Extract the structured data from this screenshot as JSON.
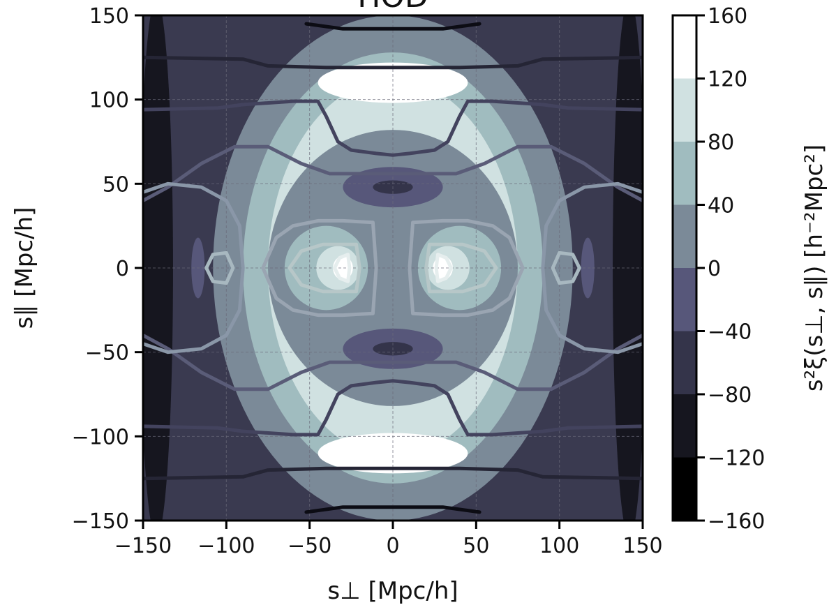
{
  "chart_data": {
    "type": "heatmap",
    "title": "HOD",
    "xlabel": "s⊥ [Mpc/h]",
    "ylabel": "s∥ [Mpc/h]",
    "colorbar_label": "s²ξ(s⊥, s∥) [h⁻²Mpc²]",
    "xlim": [
      -150,
      150
    ],
    "ylim": [
      -150,
      150
    ],
    "x_ticks": [
      -150,
      -100,
      -50,
      0,
      50,
      100,
      150
    ],
    "y_ticks": [
      -150,
      -100,
      -50,
      0,
      50,
      100,
      150
    ],
    "x_tick_labels": [
      "−150",
      "−100",
      "−50",
      "0",
      "50",
      "100",
      "150"
    ],
    "y_tick_labels": [
      "−150",
      "−100",
      "−50",
      "0",
      "50",
      "100",
      "150"
    ],
    "colorbar_levels": [
      -160,
      -120,
      -80,
      -40,
      0,
      40,
      80,
      120,
      160
    ],
    "colorbar_tick_labels": [
      "−160",
      "−120",
      "−80",
      "−40",
      "0",
      "40",
      "80",
      "120",
      "160"
    ],
    "colorbar_colors": [
      "#000000",
      "#16161f",
      "#34344a",
      "#57577a",
      "#7b8a98",
      "#a0bcbf",
      "#d0e1e1",
      "#ffffff"
    ],
    "grid": true,
    "filled_regions": [
      {
        "name": "edge-left",
        "level": -120,
        "cx": -142,
        "cy": 0,
        "rx": 10,
        "ry": 160
      },
      {
        "name": "edge-right",
        "level": -120,
        "cx": 142,
        "cy": 0,
        "rx": 10,
        "ry": 160
      },
      {
        "name": "outer-ring",
        "level": 0,
        "cx": 0,
        "cy": 0,
        "rx": 108,
        "ry": 150
      },
      {
        "name": "mid-ring",
        "level": 40,
        "cx": 0,
        "cy": 0,
        "rx": 90,
        "ry": 128
      },
      {
        "name": "bright-ring",
        "level": 80,
        "cx": 0,
        "cy": 0,
        "rx": 75,
        "ry": 112
      },
      {
        "name": "inner-dark",
        "level": 0,
        "cx": 0,
        "cy": 0,
        "rx": 75,
        "ry": 82
      },
      {
        "name": "peak-top",
        "level": 120,
        "cx": 0,
        "cy": 110,
        "rx": 45,
        "ry": 12
      },
      {
        "name": "peak-bottom",
        "level": 120,
        "cx": 0,
        "cy": -110,
        "rx": 45,
        "ry": 12
      },
      {
        "name": "lobe-top",
        "level": -40,
        "cx": 0,
        "cy": 48,
        "rx": 30,
        "ry": 12
      },
      {
        "name": "lobe-bottom",
        "level": -40,
        "cx": 0,
        "cy": -48,
        "rx": 30,
        "ry": 12
      },
      {
        "name": "lobe-left",
        "level": -40,
        "cx": -117,
        "cy": 0,
        "rx": 4,
        "ry": 18
      },
      {
        "name": "lobe-right",
        "level": -40,
        "cx": 117,
        "cy": 0,
        "rx": 4,
        "ry": 18
      },
      {
        "name": "blob-left",
        "level": 40,
        "cx": -40,
        "cy": 0,
        "rx": 25,
        "ry": 25
      },
      {
        "name": "blob-right",
        "level": 40,
        "cx": 40,
        "cy": 0,
        "rx": 25,
        "ry": 25
      },
      {
        "name": "core-left",
        "level": 80,
        "cx": -33,
        "cy": 0,
        "rx": 13,
        "ry": 13
      },
      {
        "name": "core-right",
        "level": 80,
        "cx": 33,
        "cy": 0,
        "rx": 13,
        "ry": 13
      },
      {
        "name": "spot-left",
        "level": 120,
        "cx": -30,
        "cy": 0,
        "rx": 6,
        "ry": 7
      },
      {
        "name": "spot-right",
        "level": 120,
        "cx": 30,
        "cy": 0,
        "rx": 6,
        "ry": 7
      },
      {
        "name": "eye-top",
        "level": -80,
        "cx": 0,
        "cy": 48,
        "rx": 12,
        "ry": 4
      },
      {
        "name": "eye-bottom",
        "level": -80,
        "cx": 0,
        "cy": -48,
        "rx": 12,
        "ry": 4
      }
    ],
    "line_contours": [
      {
        "name": "contour-top-outer",
        "color": "#0c0c14",
        "points": [
          [
            -52,
            145
          ],
          [
            -30,
            142
          ],
          [
            0,
            142
          ],
          [
            30,
            142
          ],
          [
            52,
            145
          ]
        ]
      },
      {
        "name": "contour-bottom-outer",
        "color": "#0c0c14",
        "points": [
          [
            -52,
            -145
          ],
          [
            -30,
            -142
          ],
          [
            0,
            -142
          ],
          [
            30,
            -142
          ],
          [
            52,
            -145
          ]
        ]
      },
      {
        "name": "contour-top-2",
        "color": "#252535",
        "points": [
          [
            -150,
            125
          ],
          [
            -90,
            124
          ],
          [
            -75,
            120
          ],
          [
            -40,
            119
          ],
          [
            0,
            119
          ],
          [
            40,
            119
          ],
          [
            75,
            120
          ],
          [
            90,
            124
          ],
          [
            150,
            125
          ]
        ]
      },
      {
        "name": "contour-bottom-2",
        "color": "#252535",
        "points": [
          [
            -150,
            -125
          ],
          [
            -90,
            -124
          ],
          [
            -75,
            -120
          ],
          [
            -40,
            -119
          ],
          [
            0,
            -119
          ],
          [
            40,
            -119
          ],
          [
            75,
            -120
          ],
          [
            90,
            -124
          ],
          [
            150,
            -125
          ]
        ]
      },
      {
        "name": "contour-top-3",
        "color": "#43435e",
        "points": [
          [
            -150,
            94
          ],
          [
            -105,
            95
          ],
          [
            -90,
            97
          ],
          [
            -60,
            99
          ],
          [
            -45,
            99
          ],
          [
            -40,
            90
          ],
          [
            -33,
            75
          ],
          [
            -25,
            70
          ],
          [
            -10,
            68
          ],
          [
            0,
            67
          ],
          [
            10,
            68
          ],
          [
            25,
            70
          ],
          [
            33,
            75
          ],
          [
            40,
            90
          ],
          [
            45,
            99
          ],
          [
            60,
            99
          ],
          [
            90,
            97
          ],
          [
            105,
            95
          ],
          [
            150,
            94
          ]
        ]
      },
      {
        "name": "contour-bottom-3",
        "color": "#43435e",
        "points": [
          [
            -150,
            -94
          ],
          [
            -105,
            -95
          ],
          [
            -90,
            -97
          ],
          [
            -60,
            -99
          ],
          [
            -45,
            -99
          ],
          [
            -40,
            -90
          ],
          [
            -33,
            -75
          ],
          [
            -25,
            -70
          ],
          [
            -10,
            -68
          ],
          [
            0,
            -67
          ],
          [
            10,
            -68
          ],
          [
            25,
            -70
          ],
          [
            33,
            -75
          ],
          [
            40,
            -90
          ],
          [
            45,
            -99
          ],
          [
            60,
            -99
          ],
          [
            90,
            -97
          ],
          [
            105,
            -95
          ],
          [
            150,
            -94
          ]
        ]
      },
      {
        "name": "contour-top-4",
        "color": "#5a5c78",
        "points": [
          [
            -150,
            40
          ],
          [
            -135,
            48
          ],
          [
            -115,
            62
          ],
          [
            -95,
            72
          ],
          [
            -75,
            72
          ],
          [
            -55,
            62
          ],
          [
            -38,
            56
          ],
          [
            -25,
            56
          ],
          [
            -10,
            56
          ],
          [
            0,
            56
          ],
          [
            10,
            56
          ],
          [
            25,
            56
          ],
          [
            38,
            56
          ],
          [
            55,
            62
          ],
          [
            75,
            72
          ],
          [
            95,
            72
          ],
          [
            115,
            62
          ],
          [
            135,
            48
          ],
          [
            150,
            40
          ]
        ]
      },
      {
        "name": "contour-bottom-4",
        "color": "#5a5c78",
        "points": [
          [
            -150,
            -40
          ],
          [
            -135,
            -48
          ],
          [
            -115,
            -62
          ],
          [
            -95,
            -72
          ],
          [
            -75,
            -72
          ],
          [
            -55,
            -62
          ],
          [
            -38,
            -56
          ],
          [
            -25,
            -56
          ],
          [
            -10,
            -56
          ],
          [
            0,
            -56
          ],
          [
            10,
            -56
          ],
          [
            25,
            -56
          ],
          [
            38,
            -56
          ],
          [
            55,
            -62
          ],
          [
            75,
            -72
          ],
          [
            95,
            -72
          ],
          [
            115,
            -62
          ],
          [
            135,
            -48
          ],
          [
            150,
            -40
          ]
        ]
      },
      {
        "name": "contour-ring-left",
        "color": "#8a97a8",
        "points": [
          [
            -150,
            -45
          ],
          [
            -135,
            -50
          ],
          [
            -115,
            -48
          ],
          [
            -100,
            -40
          ],
          [
            -92,
            -25
          ],
          [
            -90,
            0
          ],
          [
            -92,
            25
          ],
          [
            -100,
            40
          ],
          [
            -115,
            48
          ],
          [
            -135,
            50
          ],
          [
            -150,
            45
          ]
        ]
      },
      {
        "name": "contour-ring-right",
        "color": "#8a97a8",
        "points": [
          [
            150,
            -45
          ],
          [
            135,
            -50
          ],
          [
            115,
            -48
          ],
          [
            100,
            -40
          ],
          [
            92,
            -25
          ],
          [
            90,
            0
          ],
          [
            92,
            25
          ],
          [
            100,
            40
          ],
          [
            115,
            48
          ],
          [
            135,
            50
          ],
          [
            150,
            45
          ]
        ]
      },
      {
        "name": "contour-left-outer",
        "color": "#9aa5b2",
        "points": [
          [
            -78,
            0
          ],
          [
            -70,
            18
          ],
          [
            -60,
            25
          ],
          [
            -45,
            28
          ],
          [
            -30,
            28
          ],
          [
            -12,
            27
          ],
          [
            -10,
            0
          ],
          [
            -12,
            -27
          ],
          [
            -30,
            -28
          ],
          [
            -45,
            -28
          ],
          [
            -60,
            -25
          ],
          [
            -70,
            -18
          ],
          [
            -78,
            0
          ]
        ]
      },
      {
        "name": "contour-right-outer",
        "color": "#9aa5b2",
        "points": [
          [
            78,
            0
          ],
          [
            70,
            18
          ],
          [
            60,
            25
          ],
          [
            45,
            28
          ],
          [
            30,
            28
          ],
          [
            12,
            27
          ],
          [
            10,
            0
          ],
          [
            12,
            -27
          ],
          [
            30,
            -28
          ],
          [
            45,
            -28
          ],
          [
            60,
            -25
          ],
          [
            70,
            -18
          ],
          [
            78,
            0
          ]
        ]
      },
      {
        "name": "contour-left-inner",
        "color": "#b7c7c8",
        "points": [
          [
            -62,
            0
          ],
          [
            -55,
            10
          ],
          [
            -42,
            14
          ],
          [
            -22,
            14
          ],
          [
            -20,
            0
          ],
          [
            -22,
            -14
          ],
          [
            -42,
            -14
          ],
          [
            -55,
            -10
          ],
          [
            -62,
            0
          ]
        ]
      },
      {
        "name": "contour-right-inner",
        "color": "#b7c7c8",
        "points": [
          [
            62,
            0
          ],
          [
            55,
            10
          ],
          [
            42,
            14
          ],
          [
            22,
            14
          ],
          [
            20,
            0
          ],
          [
            22,
            -14
          ],
          [
            42,
            -14
          ],
          [
            55,
            -10
          ],
          [
            62,
            0
          ]
        ]
      },
      {
        "name": "contour-left-core",
        "color": "#e6eeee",
        "points": [
          [
            -35,
            0
          ],
          [
            -32,
            6
          ],
          [
            -27,
            8
          ],
          [
            -26,
            0
          ],
          [
            -27,
            -8
          ],
          [
            -32,
            -6
          ],
          [
            -35,
            0
          ]
        ]
      },
      {
        "name": "contour-right-core",
        "color": "#e6eeee",
        "points": [
          [
            35,
            0
          ],
          [
            32,
            6
          ],
          [
            27,
            8
          ],
          [
            26,
            0
          ],
          [
            27,
            -8
          ],
          [
            32,
            -6
          ],
          [
            35,
            0
          ]
        ]
      },
      {
        "name": "contour-lobe-left",
        "color": "#a8b8c0",
        "points": [
          [
            -112,
            0
          ],
          [
            -108,
            8
          ],
          [
            -100,
            9
          ],
          [
            -96,
            0
          ],
          [
            -100,
            -9
          ],
          [
            -108,
            -8
          ],
          [
            -112,
            0
          ]
        ]
      },
      {
        "name": "contour-lobe-right",
        "color": "#a8b8c0",
        "points": [
          [
            112,
            0
          ],
          [
            108,
            8
          ],
          [
            100,
            9
          ],
          [
            96,
            0
          ],
          [
            100,
            -9
          ],
          [
            108,
            -8
          ],
          [
            112,
            0
          ]
        ]
      }
    ]
  }
}
